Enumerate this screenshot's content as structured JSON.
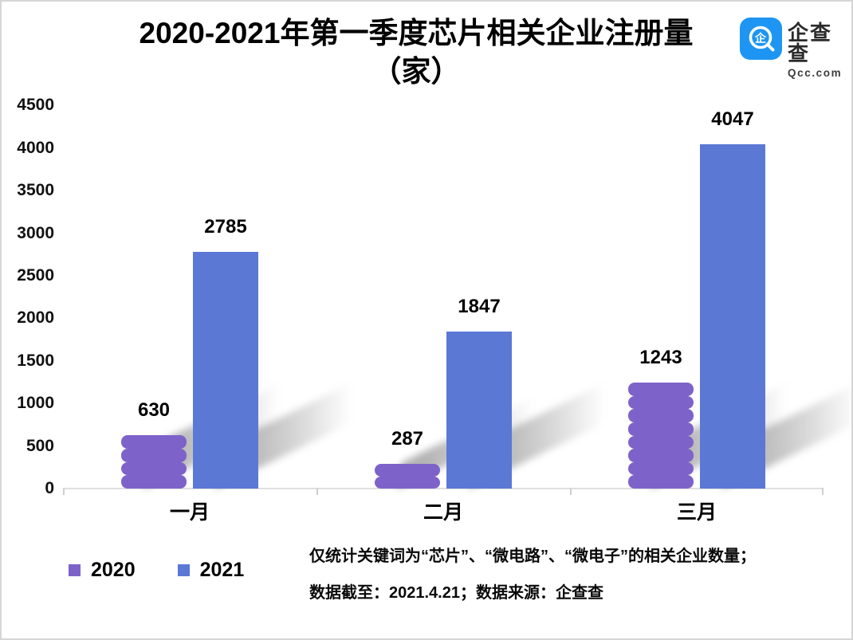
{
  "header": {
    "title_line1": "2020-2021年第一季度芯片相关企业注册量",
    "title_line2": "（家）",
    "logo": {
      "icon": "qcc-spiral-q-icon",
      "name": "企查查",
      "domain": "Qcc.com",
      "color": "#1e95f2"
    }
  },
  "chart_data": {
    "type": "bar",
    "title": "2020-2021年第一季度芯片相关企业注册量（家）",
    "categories": [
      "一月",
      "二月",
      "三月"
    ],
    "series": [
      {
        "name": "2020",
        "color": "#7d63c9",
        "style": "scalloped-segments",
        "values": [
          630,
          287,
          1243
        ]
      },
      {
        "name": "2021",
        "color": "#5b78d5",
        "style": "plain",
        "values": [
          2785,
          1847,
          4047
        ]
      }
    ],
    "ylim": [
      0,
      4500
    ],
    "ytick_step": 500,
    "yticks": [
      0,
      500,
      1000,
      1500,
      2000,
      2500,
      3000,
      3500,
      4000,
      4500
    ],
    "grid": false,
    "data_labels": true,
    "legend_position": "bottom-left",
    "axis_color": "#e0e0e0",
    "shadow_effect": "perspective-diagonal-right"
  },
  "footer": {
    "note_line1": "仅统计关键词为“芯片”、“微电路”、“微电子”的相关企业数量；",
    "note_line2": "数据截至：2021.4.21；数据来源：企查查"
  }
}
